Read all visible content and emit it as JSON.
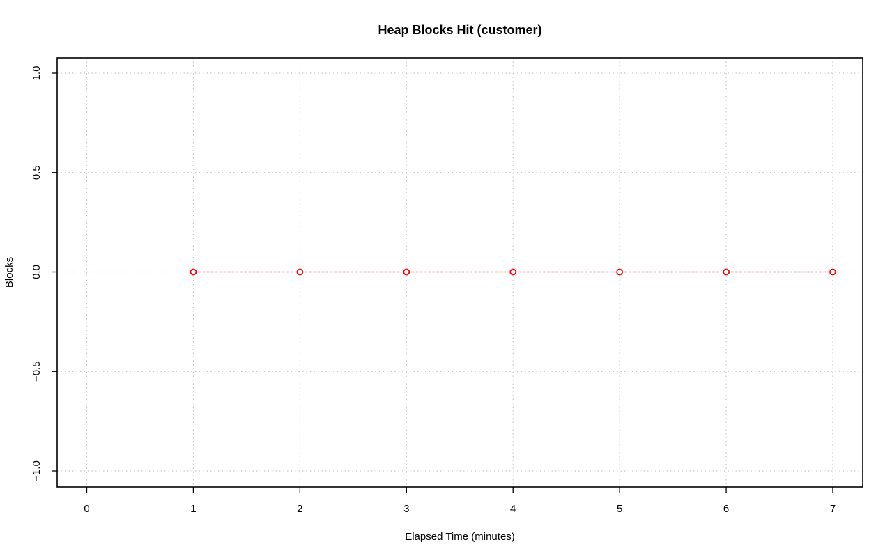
{
  "chart_data": {
    "type": "line",
    "title": "Heap Blocks Hit (customer)",
    "xlabel": "Elapsed Time (minutes)",
    "ylabel": "Blocks",
    "xlim": [
      0,
      7
    ],
    "ylim": [
      -1.0,
      1.0
    ],
    "x_ticks": [
      0,
      1,
      2,
      3,
      4,
      5,
      6,
      7
    ],
    "x_tick_labels": [
      "0",
      "1",
      "2",
      "3",
      "4",
      "5",
      "6",
      "7"
    ],
    "y_ticks": [
      -1.0,
      -0.5,
      0.0,
      0.5,
      1.0
    ],
    "y_tick_labels": [
      "−1.0",
      "−0.5",
      "0.0",
      "0.5",
      "1.0"
    ],
    "grid": true,
    "series": [
      {
        "x": [
          1,
          2,
          3,
          4,
          5,
          6,
          7
        ],
        "y": [
          0,
          0,
          0,
          0,
          0,
          0,
          0
        ],
        "color": "#ff0000",
        "line_style": "dashed",
        "marker": "open-circle"
      }
    ]
  }
}
